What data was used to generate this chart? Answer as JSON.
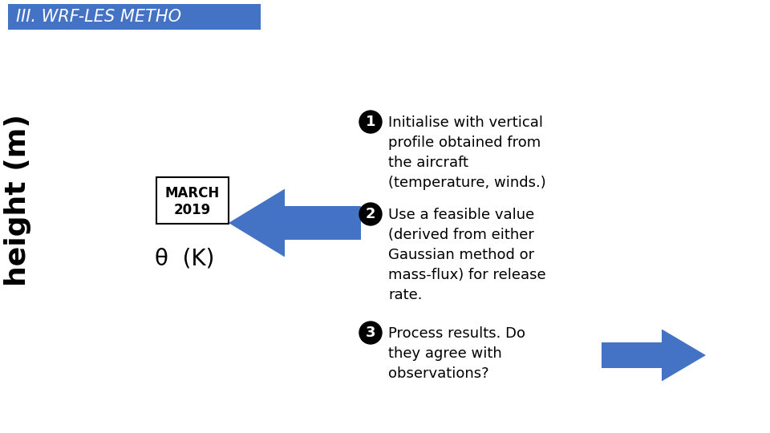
{
  "title": "III. WRF-LES METHO",
  "title_bg_color": "#4472C4",
  "title_text_color": "#FFFFFF",
  "background_color": "#FFFFFF",
  "arrow_left_color": "#4472C4",
  "arrow_right_color": "#4472C4",
  "ylabel": "height (m)",
  "xlabel": "θ  (K)",
  "box_label_line1": "MARCH",
  "box_label_line2": "2019",
  "step1_num": "1",
  "step1_text": "Initialise with vertical\nprofile obtained from\nthe aircraft\n(temperature, winds.)",
  "step2_num": "2",
  "step2_text": "Use a feasible value\n(derived from either\nGaussian method or\nmass-flux) for release\nrate.",
  "step3_num": "3",
  "step3_text": "Process results. Do\nthey agree with\nobservations?",
  "circle_color": "#000000",
  "circle_text_color": "#FFFFFF"
}
